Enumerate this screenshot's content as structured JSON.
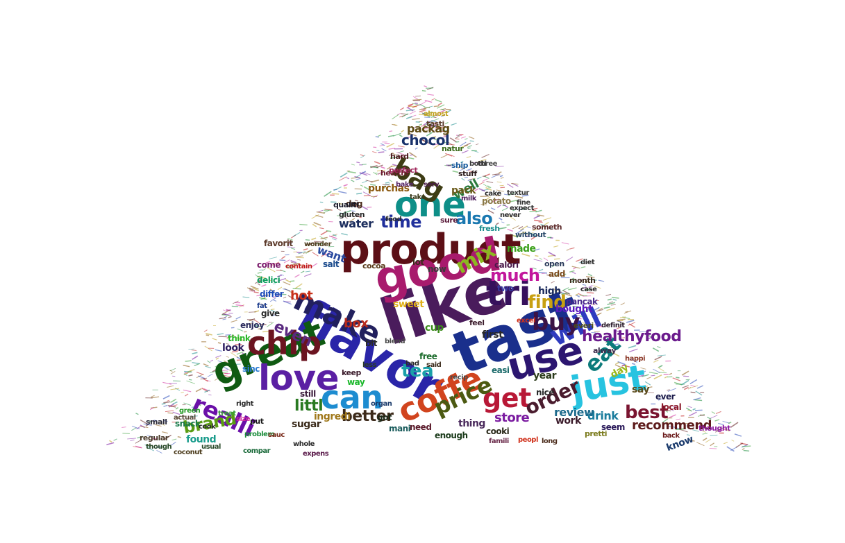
{
  "wordcloud": {
    "shape": "triangle",
    "words": [
      {
        "t": "like",
        "c": "#4a1c5c"
      },
      {
        "t": "tast",
        "c": "#1a2f8c"
      },
      {
        "t": "product",
        "c": "#5c0f16"
      },
      {
        "t": "good",
        "c": "#a81b6d"
      },
      {
        "t": "flavor",
        "c": "#2a25a8"
      },
      {
        "t": "great",
        "c": "#0f5a12"
      },
      {
        "t": "love",
        "c": "#5a1fa3"
      },
      {
        "t": "use",
        "c": "#2c1670"
      },
      {
        "t": "one",
        "c": "#0e8f88"
      },
      {
        "t": "just",
        "c": "#27c3e0"
      },
      {
        "t": "tri",
        "c": "#36105c"
      },
      {
        "t": "can",
        "c": "#1d8cd0"
      },
      {
        "t": "make",
        "c": "#22205e"
      },
      {
        "t": "coffe",
        "c": "#d1441e"
      },
      {
        "t": "chip",
        "c": "#6b1420"
      },
      {
        "t": "will",
        "c": "#2e3bbf"
      },
      {
        "t": "get",
        "c": "#b81836"
      },
      {
        "t": "buy",
        "c": "#3b1346"
      },
      {
        "t": "bag",
        "c": "#3d3c14"
      },
      {
        "t": "realli",
        "c": "#6a0fa8"
      },
      {
        "t": "eat",
        "c": "#0c7b7b"
      },
      {
        "t": "price",
        "c": "#4c5a12"
      },
      {
        "t": "tea",
        "c": "#1aa0a8"
      },
      {
        "t": "time",
        "c": "#21309c"
      },
      {
        "t": "mix",
        "c": "#8cb820"
      },
      {
        "t": "find",
        "c": "#c8a012"
      },
      {
        "t": "much",
        "c": "#c2189c"
      },
      {
        "t": "also",
        "c": "#1a78b0"
      },
      {
        "t": "order",
        "c": "#4a1c2e"
      },
      {
        "t": "best",
        "c": "#7a1430"
      },
      {
        "t": "brand",
        "c": "#5a9c12"
      },
      {
        "t": "healthyfood",
        "c": "#6a1a8c"
      },
      {
        "t": "littl",
        "c": "#2a7a22"
      },
      {
        "t": "chocol",
        "c": "#18316a"
      },
      {
        "t": "better",
        "c": "#3c2a1a"
      },
      {
        "t": "even",
        "c": "#5a2a80"
      },
      {
        "t": "recommend",
        "c": "#5c1a1a"
      },
      {
        "t": "well",
        "c": "#2c7a3c"
      },
      {
        "t": "hot",
        "c": "#c8301a"
      },
      {
        "t": "box",
        "c": "#b82a1c"
      },
      {
        "t": "store",
        "c": "#7a1aa0"
      },
      {
        "t": "water",
        "c": "#1a2c5c"
      },
      {
        "t": "want",
        "c": "#2a4aa0"
      },
      {
        "t": "packag",
        "c": "#5c4a12"
      },
      {
        "t": "drink",
        "c": "#1a7c9c"
      },
      {
        "t": "review",
        "c": "#1c6a8c"
      },
      {
        "t": "pack",
        "c": "#6a5a1a"
      },
      {
        "t": "purchas",
        "c": "#8c5a10"
      },
      {
        "t": "ingredi",
        "c": "#a0781a"
      },
      {
        "t": "sugar",
        "c": "#3a2a1a"
      },
      {
        "t": "found",
        "c": "#1a9c8c"
      },
      {
        "t": "day",
        "c": "#9cb81a"
      },
      {
        "t": "year",
        "c": "#2a3a1a"
      },
      {
        "t": "cup",
        "c": "#3a8c1a"
      },
      {
        "t": "made",
        "c": "#3aa01a"
      },
      {
        "t": "high",
        "c": "#1a2a5c"
      },
      {
        "t": "bought",
        "c": "#5c1ac0"
      },
      {
        "t": "sweet",
        "c": "#e0b018"
      },
      {
        "t": "first",
        "c": "#2a2a2a"
      },
      {
        "t": "thing",
        "c": "#4a2a5c"
      },
      {
        "t": "work",
        "c": "#3a1a2a"
      },
      {
        "t": "know",
        "c": "#1a3a6c"
      },
      {
        "t": "say",
        "c": "#5a4a1a"
      },
      {
        "t": "look",
        "c": "#2a1a5c"
      },
      {
        "t": "snack",
        "c": "#1a7a4a"
      },
      {
        "t": "sinc",
        "c": "#2a7ad0"
      },
      {
        "t": "think",
        "c": "#2ab82a"
      },
      {
        "t": "enjoy",
        "c": "#2a2a5c"
      },
      {
        "t": "salt",
        "c": "#1a4a8c"
      },
      {
        "t": "now",
        "c": "#3a3a3a"
      },
      {
        "t": "lot",
        "c": "#3a2a1a"
      },
      {
        "t": "free",
        "c": "#1a6a2a"
      },
      {
        "t": "dog",
        "c": "#4a2a1a"
      },
      {
        "t": "potato",
        "c": "#8c7a4a"
      },
      {
        "t": "favorit",
        "c": "#5c3a2a"
      },
      {
        "t": "differ",
        "c": "#1a4ab8"
      },
      {
        "t": "give",
        "c": "#2a2a2a"
      },
      {
        "t": "delici",
        "c": "#0c9c5c"
      },
      {
        "t": "come",
        "c": "#7a1a6a"
      },
      {
        "t": "cooki",
        "c": "#2a2a1a"
      },
      {
        "t": "need",
        "c": "#5a1a2a"
      },
      {
        "t": "enough",
        "c": "#1a3a1a"
      },
      {
        "t": "mani",
        "c": "#1a5c5c"
      },
      {
        "t": "got",
        "c": "#1a2a1a"
      },
      {
        "t": "bit",
        "c": "#2a2a2a"
      },
      {
        "t": "way",
        "c": "#1ab82a"
      },
      {
        "t": "still",
        "c": "#3a1a3a"
      },
      {
        "t": "nice",
        "c": "#2a2a2a"
      },
      {
        "t": "easi",
        "c": "#1a6a6a"
      },
      {
        "t": "pancak",
        "c": "#4a2a8c"
      },
      {
        "t": "two",
        "c": "#3a3aa0"
      },
      {
        "t": "add",
        "c": "#7a4a1a"
      },
      {
        "t": "calori",
        "c": "#4a1a4a"
      },
      {
        "t": "seem",
        "c": "#2a1a5a"
      },
      {
        "t": "ever",
        "c": "#1a1a4a"
      },
      {
        "t": "local",
        "c": "#8c1a2a"
      },
      {
        "t": "thought",
        "c": "#8c1aa0"
      },
      {
        "t": "pretti",
        "c": "#7a7a1a"
      },
      {
        "t": "fresh",
        "c": "#1a8c8c"
      },
      {
        "t": "gluten",
        "c": "#2a2a2a"
      },
      {
        "t": "qualiti",
        "c": "#1a1a2a"
      },
      {
        "t": "healthi",
        "c": "#6a1a2a"
      },
      {
        "t": "perfect",
        "c": "#a0285c"
      },
      {
        "t": "ship",
        "c": "#1a5c9c"
      },
      {
        "t": "natur",
        "c": "#3a6a1a"
      },
      {
        "t": "tasti",
        "c": "#5a3a2a"
      },
      {
        "t": "regular",
        "c": "#4a3a2a"
      },
      {
        "t": "small",
        "c": "#2a2a3a"
      },
      {
        "t": "put",
        "c": "#1a1a1a"
      },
      {
        "t": "cocoa",
        "c": "#5a3a1a"
      },
      {
        "t": "someth",
        "c": "#5c2a2a"
      },
      {
        "t": "without",
        "c": "#2a4a6a"
      },
      {
        "t": "month",
        "c": "#3a2a1a"
      },
      {
        "t": "alway",
        "c": "#3a2a4a"
      },
      {
        "t": "everi",
        "c": "#4a4a1a"
      },
      {
        "t": "open",
        "c": "#2a3a5a"
      },
      {
        "t": "stuff",
        "c": "#2a1a1a"
      },
      {
        "t": "hard",
        "c": "#4a1a1a"
      },
      {
        "t": "keep",
        "c": "#3a1a2a"
      },
      {
        "t": "feel",
        "c": "#3a1a2a"
      },
      {
        "t": "sure",
        "c": "#5a1a3a"
      },
      {
        "t": "milk",
        "c": "#4a1a5a"
      },
      {
        "t": "almost",
        "c": "#c0a01a"
      },
      {
        "t": "cake",
        "c": "#2a2a2a"
      },
      {
        "t": "bake",
        "c": "#5a2a6a"
      },
      {
        "t": "contain",
        "c": "#c0181a"
      },
      {
        "t": "actual",
        "c": "#5a4a3a"
      },
      {
        "t": "organ",
        "c": "#1a3a6a"
      },
      {
        "t": "problem",
        "c": "#1a8c3a"
      },
      {
        "t": "though",
        "c": "#2a4a2a"
      },
      {
        "t": "recip",
        "c": "#4a4a4a"
      },
      {
        "t": "whole",
        "c": "#2a2a2a"
      },
      {
        "t": "famili",
        "c": "#6a2a4a"
      },
      {
        "t": "case",
        "c": "#2a2a2a"
      },
      {
        "t": "long",
        "c": "#4a2a1a"
      },
      {
        "t": "happi",
        "c": "#8c3a2a"
      },
      {
        "t": "back",
        "c": "#6a1a1a"
      },
      {
        "t": "expens",
        "c": "#5a1a4a"
      },
      {
        "t": "coconut",
        "c": "#4a3a1a"
      },
      {
        "t": "usual",
        "c": "#2a4a2a"
      },
      {
        "t": "compar",
        "c": "#1a6a3a"
      },
      {
        "t": "size",
        "c": "#d02a9c"
      },
      {
        "t": "sauc",
        "c": "#7a2a1a"
      },
      {
        "t": "green",
        "c": "#2a9c2a"
      },
      {
        "t": "cook",
        "c": "#2a2a2a"
      },
      {
        "t": "right",
        "c": "#2a2a2a"
      },
      {
        "t": "treat",
        "c": "#3aa03a"
      },
      {
        "t": "less",
        "c": "#2a3a2a"
      },
      {
        "t": "bad",
        "c": "#2a2a2a"
      },
      {
        "t": "peopl",
        "c": "#d0301a"
      },
      {
        "t": "fat",
        "c": "#1a3a8c"
      },
      {
        "t": "diet",
        "c": "#2a2a2a"
      },
      {
        "t": "serv",
        "c": "#4a1a4a"
      },
      {
        "t": "take",
        "c": "#3a3a1a"
      },
      {
        "t": "never",
        "c": "#2a2a2a"
      },
      {
        "t": "said",
        "c": "#3a2a1a"
      },
      {
        "t": "blend",
        "c": "#4a4a4a"
      },
      {
        "t": "definit",
        "c": "#2a1a2a"
      },
      {
        "t": "excel",
        "c": "#d0301a"
      },
      {
        "t": "food",
        "c": "#2a2a2a"
      },
      {
        "t": "three",
        "c": "#4a4a4a"
      },
      {
        "t": "fine",
        "c": "#3a3a3a"
      },
      {
        "t": "wonder",
        "c": "#4a3a1a"
      },
      {
        "t": "expect",
        "c": "#2a2a2a"
      },
      {
        "t": "bottl",
        "c": "#3a3a3a"
      },
      {
        "t": "textur",
        "c": "#3a3a3a"
      }
    ]
  }
}
